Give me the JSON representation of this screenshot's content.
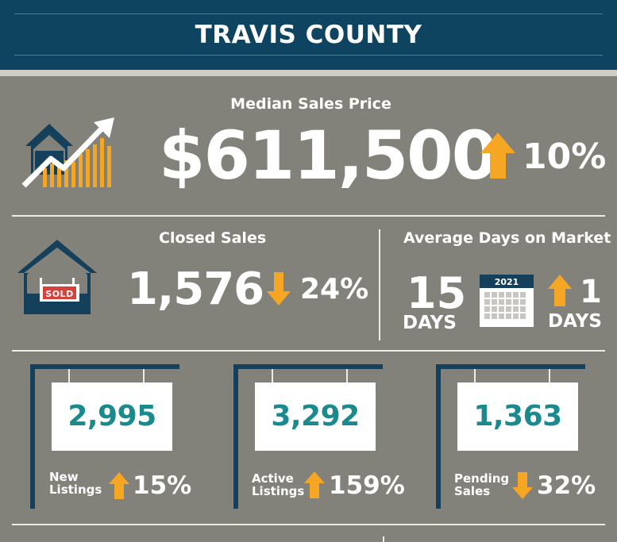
{
  "header": {
    "title": "TRAVIS COUNTY"
  },
  "median_sales_price": {
    "label": "Median Sales Price",
    "value": "$611,500",
    "change": "10%",
    "direction": "up"
  },
  "closed_sales": {
    "label": "Closed Sales",
    "sign_text": "SOLD",
    "value": "1,576",
    "change": "24%",
    "direction": "down"
  },
  "average_days_on_market": {
    "label": "Average Days on Market",
    "value": "15",
    "unit": "DAYS",
    "calendar_year": "2021",
    "change": "1",
    "change_unit": "DAYS",
    "direction": "up"
  },
  "listings": [
    {
      "value": "2,995",
      "label_line1": "New",
      "label_line2": "Listings",
      "change": "15%",
      "direction": "up"
    },
    {
      "value": "3,292",
      "label_line1": "Active",
      "label_line2": "Listings",
      "change": "159%",
      "direction": "up"
    },
    {
      "value": "1,363",
      "label_line1": "Pending",
      "label_line2": "Sales",
      "change": "32%",
      "direction": "down"
    }
  ],
  "colors": {
    "background": "#83827a",
    "header": "#0e4460",
    "accent": "#f5a623",
    "teal": "#1a8a8c",
    "navy": "#15405c",
    "sold_red": "#d8403a"
  }
}
